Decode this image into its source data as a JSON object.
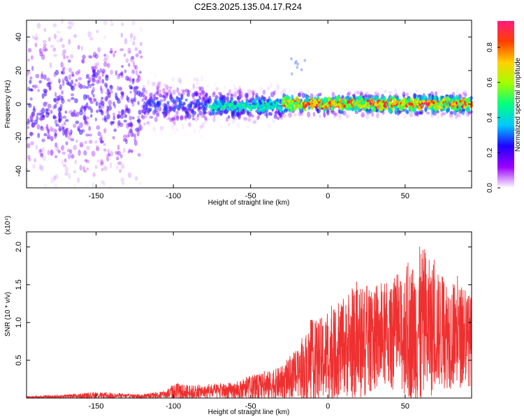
{
  "title": "C2E3.2025.135.04.17.R24",
  "chart_data": [
    {
      "type": "heatmap",
      "xlabel": "Height of straight line (km)",
      "ylabel": "Frequency (Hz)",
      "xlim": [
        -195,
        93
      ],
      "ylim": [
        -50,
        50
      ],
      "x_ticks": [
        -150,
        -100,
        -50,
        0,
        50
      ],
      "y_ticks": [
        -40,
        -20,
        0,
        20,
        40
      ],
      "colorbar": {
        "label": "Normalized spectral amplitude",
        "range": [
          0,
          0.95
        ],
        "ticks": [
          0.0,
          0.2,
          0.4,
          0.6,
          0.8
        ],
        "colors": [
          "#ffffff",
          "#9b00ff",
          "#2000ff",
          "#00c8ff",
          "#00ff80",
          "#a0ff00",
          "#ffd200",
          "#ff4000",
          "#ff1a80"
        ]
      },
      "ridge": {
        "segments": [
          {
            "x_start": -195,
            "x_end": -120,
            "freq_center": 0,
            "freq_spread": 45,
            "peak_amplitude": 0.25
          },
          {
            "x_start": -120,
            "x_end": -80,
            "freq_center": 0,
            "freq_spread": 12,
            "peak_amplitude": 0.3
          },
          {
            "x_start": -80,
            "x_end": -30,
            "freq_center": -1,
            "freq_spread": 8,
            "peak_amplitude": 0.45
          },
          {
            "x_start": -30,
            "x_end": 93,
            "freq_center": 0,
            "freq_spread": 5,
            "peak_amplitude": 0.9
          }
        ],
        "isolated_feature": {
          "x": -20,
          "freq": 22,
          "amplitude": 0.08
        }
      }
    },
    {
      "type": "line",
      "xlabel": "Height of straight line (km)",
      "ylabel": "SNR (10 * v/v)",
      "y_multiplier": "(x10⁴)",
      "xlim": [
        -195,
        93
      ],
      "ylim": [
        0,
        2.2
      ],
      "x_ticks": [
        -150,
        -100,
        -50,
        0,
        50
      ],
      "y_ticks": [
        0.5,
        1.0,
        1.5,
        2.0
      ],
      "series": [
        {
          "color": "#ef3030",
          "envelope_x": [
            -195,
            -170,
            -150,
            -120,
            -105,
            -100,
            -80,
            -60,
            -50,
            -30,
            -20,
            -10,
            0,
            10,
            20,
            30,
            40,
            50,
            60,
            70,
            80,
            93
          ],
          "envelope_y_max": [
            0.02,
            0.05,
            0.08,
            0.05,
            0.1,
            0.2,
            0.18,
            0.22,
            0.3,
            0.45,
            0.65,
            1.1,
            1.2,
            1.35,
            1.6,
            1.5,
            1.55,
            1.75,
            2.2,
            1.8,
            1.7,
            1.45
          ],
          "envelope_y_mean": [
            0.01,
            0.02,
            0.03,
            0.02,
            0.04,
            0.06,
            0.07,
            0.08,
            0.1,
            0.18,
            0.28,
            0.4,
            0.48,
            0.58,
            0.65,
            0.68,
            0.72,
            0.75,
            0.8,
            0.82,
            0.78,
            0.7
          ]
        }
      ]
    }
  ]
}
